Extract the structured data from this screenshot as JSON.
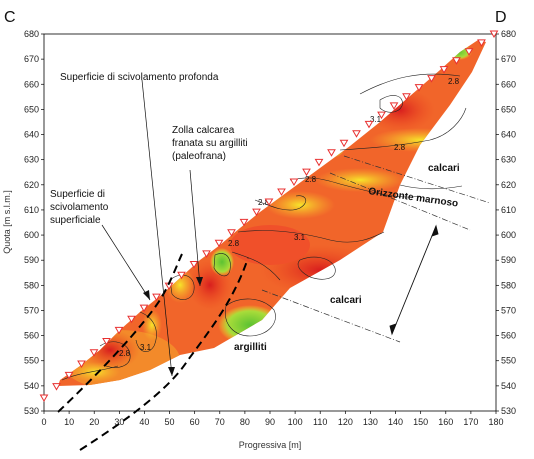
{
  "section": {
    "left_label": "C",
    "right_label": "D",
    "y_axis_label": "Quota [m s.l.m.]",
    "x_axis_label": "Progressiva [m]",
    "y_ticks": [
      "530",
      "540",
      "550",
      "560",
      "570",
      "580",
      "590",
      "600",
      "610",
      "620",
      "630",
      "640",
      "650",
      "660",
      "670",
      "680"
    ],
    "x_ticks": [
      "0",
      "10",
      "20",
      "30",
      "40",
      "50",
      "60",
      "70",
      "80",
      "90",
      "100",
      "110",
      "120",
      "130",
      "140",
      "150",
      "160",
      "170",
      "180"
    ]
  },
  "annotations": {
    "deep_slip": "Superficie di scivolamento profonda",
    "limestone_block": [
      "Zolla calcarea",
      "franata su argilliti",
      "(paleofrana)"
    ],
    "shallow_slip": [
      "Superficie di",
      "scivolamento",
      "superficiale"
    ]
  },
  "layers": {
    "calcari_upper": "calcari",
    "marl_horizon": "Orizzonte marnoso",
    "calcari_lower": "calcari",
    "argilliti": "argilliti"
  },
  "contour_labels": {
    "c1": "2.8",
    "c2": "3.1",
    "c3": "2.8",
    "c4": "2.8",
    "c5": "2.8",
    "c6": "3.1",
    "c7": "2.8",
    "c8": "3.1",
    "c9": "2.8"
  },
  "colors": {
    "resistivity_high": "#e8281e",
    "resistivity_mid": "#f5821e",
    "resistivity_low": "#f5e628",
    "resistivity_lowest": "#7fd23c",
    "electrode_marker": "#e83030"
  }
}
